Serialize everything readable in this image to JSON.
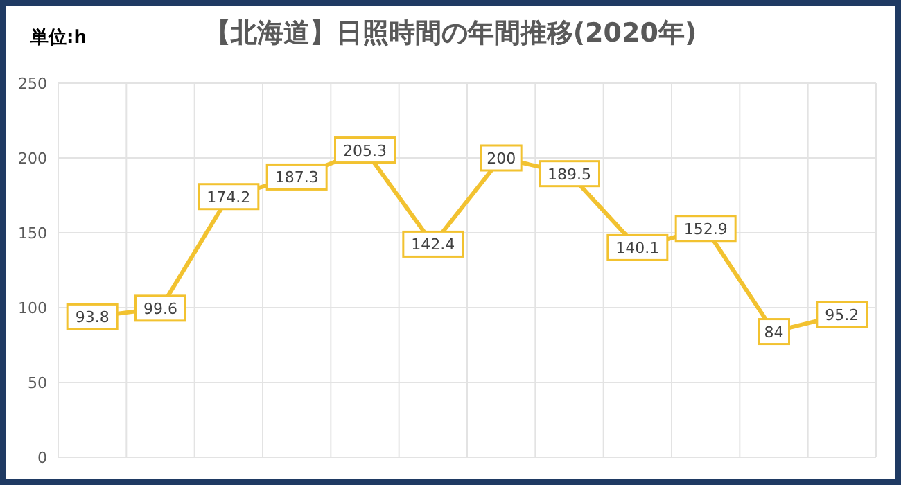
{
  "chart_data": {
    "type": "line",
    "title": "【北海道】日照時間の年間推移(2020年)",
    "subtitle": "単位:h",
    "categories": [
      null,
      null,
      null,
      null,
      null,
      null,
      null,
      null,
      null,
      null,
      null,
      null
    ],
    "series": [
      {
        "color": "#f2c230",
        "values": [
          93.8,
          99.6,
          174.2,
          187.3,
          205.3,
          142.4,
          200,
          189.5,
          140.1,
          152.9,
          84,
          95.2
        ]
      }
    ],
    "ylim": [
      0,
      250
    ],
    "yticks": [
      0,
      50,
      100,
      150,
      200,
      250
    ],
    "grid": true,
    "data_labels": true,
    "marker": "square",
    "line_style": "solid"
  }
}
